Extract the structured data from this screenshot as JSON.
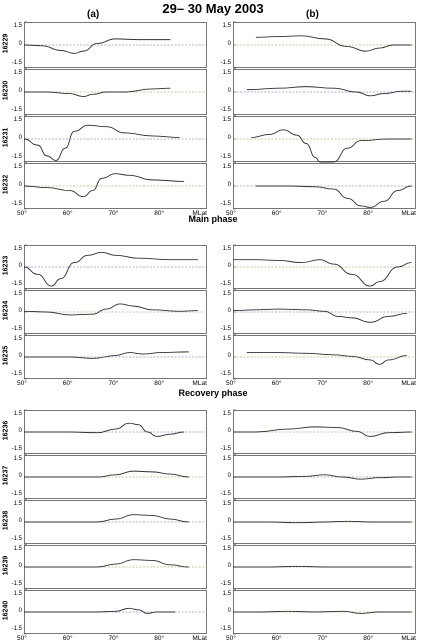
{
  "title": "29– 30  May  2003",
  "columns": [
    {
      "label": "(a)"
    },
    {
      "label": "(b)"
    }
  ],
  "phases": [
    "Main phase",
    "Recovery phase"
  ],
  "colors": {
    "curve": "#303030",
    "zero_line": "#5b63c4",
    "zero_line_alt": "#8a9a3c",
    "frame": "#555555"
  },
  "chart_data": [
    {
      "type": "line",
      "group": "main-top",
      "x_tick_labels": [
        "50°",
        "60°",
        "70°",
        "80°",
        "MLat"
      ],
      "xlim": [
        50,
        90
      ],
      "ylim": [
        -1.5,
        1.5
      ],
      "y_tick_labels": [
        "1.5",
        "0",
        "-1.5"
      ],
      "panels": [
        {
          "orbit": "16229",
          "a": [
            [
              50,
              0
            ],
            [
              54,
              -0.05
            ],
            [
              58,
              -0.35
            ],
            [
              61,
              -0.55
            ],
            [
              63,
              -0.4
            ],
            [
              66,
              0.1
            ],
            [
              70,
              0.4
            ],
            [
              75,
              0.35
            ],
            [
              82,
              0.35
            ]
          ],
          "b": [
            [
              55,
              0.5
            ],
            [
              60,
              0.55
            ],
            [
              65,
              0.6
            ],
            [
              70,
              0.4
            ],
            [
              75,
              -0.1
            ],
            [
              79,
              -0.4
            ],
            [
              82,
              -0.2
            ],
            [
              85,
              0
            ],
            [
              89,
              0
            ]
          ]
        },
        {
          "orbit": "16230",
          "a": [
            [
              50,
              0
            ],
            [
              55,
              0
            ],
            [
              60,
              -0.1
            ],
            [
              63,
              -0.3
            ],
            [
              65,
              -0.15
            ],
            [
              68,
              0
            ],
            [
              72,
              0
            ],
            [
              78,
              0.2
            ],
            [
              82,
              0.25
            ]
          ],
          "b": [
            [
              53,
              0.15
            ],
            [
              60,
              0.25
            ],
            [
              66,
              0.35
            ],
            [
              72,
              0.25
            ],
            [
              77,
              0
            ],
            [
              80,
              -0.25
            ],
            [
              83,
              -0.1
            ],
            [
              87,
              0.05
            ],
            [
              89,
              0.05
            ]
          ]
        },
        {
          "orbit": "16231",
          "a": [
            [
              50,
              0
            ],
            [
              53,
              -0.4
            ],
            [
              55,
              -1.1
            ],
            [
              57,
              -1.4
            ],
            [
              59,
              -0.6
            ],
            [
              61,
              0.5
            ],
            [
              64,
              0.9
            ],
            [
              68,
              0.8
            ],
            [
              72,
              0.4
            ],
            [
              78,
              0.2
            ],
            [
              84,
              0.1
            ]
          ],
          "b": [
            [
              54,
              0.1
            ],
            [
              58,
              0.3
            ],
            [
              61,
              0.6
            ],
            [
              64,
              0.25
            ],
            [
              66,
              -0.3
            ],
            [
              68,
              -1.2
            ],
            [
              69,
              -1.5
            ],
            [
              72,
              -1.5
            ],
            [
              75,
              -0.6
            ],
            [
              78,
              -0.1
            ],
            [
              84,
              0
            ],
            [
              89,
              0
            ]
          ]
        },
        {
          "orbit": "16232",
          "a": [
            [
              50,
              0
            ],
            [
              55,
              -0.1
            ],
            [
              60,
              -0.3
            ],
            [
              63,
              -0.7
            ],
            [
              65,
              -0.3
            ],
            [
              67,
              0.5
            ],
            [
              70,
              0.8
            ],
            [
              73,
              0.7
            ],
            [
              78,
              0.4
            ],
            [
              85,
              0.3
            ]
          ],
          "b": [
            [
              55,
              0
            ],
            [
              62,
              0
            ],
            [
              68,
              -0.05
            ],
            [
              72,
              -0.2
            ],
            [
              75,
              -0.8
            ],
            [
              78,
              -1.3
            ],
            [
              80,
              -1.4
            ],
            [
              83,
              -1.0
            ],
            [
              86,
              -0.3
            ],
            [
              89,
              0
            ]
          ]
        }
      ]
    },
    {
      "type": "line",
      "group": "main-bottom",
      "x_tick_labels": [
        "50°",
        "60°",
        "70°",
        "80°",
        "MLat"
      ],
      "xlim": [
        50,
        90
      ],
      "ylim": [
        -1.5,
        1.5
      ],
      "y_tick_labels": [
        "1.5",
        "0",
        "-1.5"
      ],
      "panels": [
        {
          "orbit": "16233",
          "a": [
            [
              50,
              0
            ],
            [
              53,
              -0.5
            ],
            [
              56,
              -1.3
            ],
            [
              58,
              -0.8
            ],
            [
              61,
              0.3
            ],
            [
              64,
              0.8
            ],
            [
              67,
              1.0
            ],
            [
              70,
              0.8
            ],
            [
              75,
              0.6
            ],
            [
              82,
              0.5
            ],
            [
              88,
              0.5
            ]
          ],
          "b": [
            [
              50,
              0.5
            ],
            [
              55,
              0.5
            ],
            [
              60,
              0.45
            ],
            [
              65,
              0.3
            ],
            [
              69,
              0.5
            ],
            [
              72,
              0.2
            ],
            [
              76,
              -0.5
            ],
            [
              80,
              -1.3
            ],
            [
              82,
              -1.0
            ],
            [
              86,
              0
            ],
            [
              89,
              0.3
            ]
          ]
        },
        {
          "orbit": "16234",
          "a": [
            [
              50,
              0.05
            ],
            [
              55,
              0
            ],
            [
              60,
              -0.2
            ],
            [
              65,
              -0.15
            ],
            [
              68,
              0.2
            ],
            [
              71,
              0.55
            ],
            [
              74,
              0.4
            ],
            [
              78,
              0.15
            ],
            [
              84,
              0.05
            ],
            [
              88,
              0.1
            ]
          ],
          "b": [
            [
              50,
              0.1
            ],
            [
              55,
              0.15
            ],
            [
              60,
              0.2
            ],
            [
              66,
              0.15
            ],
            [
              70,
              0.05
            ],
            [
              73,
              -0.3
            ],
            [
              76,
              -0.4
            ],
            [
              80,
              -0.7
            ],
            [
              84,
              -0.3
            ],
            [
              88,
              -0.1
            ]
          ]
        },
        {
          "orbit": "16235",
          "a": [
            [
              50,
              0
            ],
            [
              55,
              0
            ],
            [
              60,
              0
            ],
            [
              65,
              -0.1
            ],
            [
              70,
              0.1
            ],
            [
              73,
              0.3
            ],
            [
              76,
              0.2
            ],
            [
              80,
              0.3
            ],
            [
              86,
              0.35
            ]
          ],
          "b": [
            [
              53,
              0.3
            ],
            [
              60,
              0.3
            ],
            [
              66,
              0.25
            ],
            [
              72,
              0.15
            ],
            [
              76,
              0.05
            ],
            [
              80,
              -0.2
            ],
            [
              82,
              -0.5
            ],
            [
              84,
              -0.2
            ],
            [
              88,
              0.1
            ]
          ]
        }
      ]
    },
    {
      "type": "line",
      "group": "recovery",
      "x_tick_labels": [
        "50°",
        "60°",
        "70°",
        "80°",
        "MLat"
      ],
      "xlim": [
        50,
        90
      ],
      "ylim": [
        -1.5,
        1.5
      ],
      "y_tick_labels": [
        "1.5",
        "0",
        "-1.5"
      ],
      "panels": [
        {
          "orbit": "16236",
          "a": [
            [
              50,
              0
            ],
            [
              60,
              0
            ],
            [
              66,
              -0.05
            ],
            [
              70,
              0.2
            ],
            [
              73,
              0.6
            ],
            [
              75,
              0.5
            ],
            [
              77,
              0
            ],
            [
              79,
              -0.3
            ],
            [
              82,
              -0.15
            ],
            [
              85,
              0
            ]
          ],
          "b": [
            [
              50,
              0
            ],
            [
              55,
              0
            ],
            [
              62,
              0.2
            ],
            [
              68,
              0.35
            ],
            [
              73,
              0.3
            ],
            [
              77,
              0.05
            ],
            [
              80,
              -0.3
            ],
            [
              84,
              -0.05
            ],
            [
              89,
              0
            ]
          ]
        },
        {
          "orbit": "16237",
          "a": [
            [
              50,
              0
            ],
            [
              60,
              0
            ],
            [
              66,
              0
            ],
            [
              70,
              0.15
            ],
            [
              74,
              0.4
            ],
            [
              78,
              0.35
            ],
            [
              82,
              0.2
            ],
            [
              86,
              0
            ]
          ],
          "b": [
            [
              50,
              0
            ],
            [
              60,
              0
            ],
            [
              66,
              0.05
            ],
            [
              70,
              0.15
            ],
            [
              74,
              0
            ],
            [
              78,
              -0.15
            ],
            [
              82,
              -0.05
            ],
            [
              86,
              0
            ],
            [
              89,
              0
            ]
          ]
        },
        {
          "orbit": "16238",
          "a": [
            [
              50,
              0
            ],
            [
              60,
              0
            ],
            [
              66,
              0
            ],
            [
              70,
              0.2
            ],
            [
              74,
              0.5
            ],
            [
              78,
              0.45
            ],
            [
              82,
              0.2
            ],
            [
              86,
              0
            ]
          ],
          "b": [
            [
              50,
              0
            ],
            [
              58,
              0
            ],
            [
              64,
              -0.05
            ],
            [
              70,
              0
            ],
            [
              75,
              0.05
            ],
            [
              80,
              0
            ],
            [
              86,
              0
            ],
            [
              89,
              0
            ]
          ]
        },
        {
          "orbit": "16239",
          "a": [
            [
              50,
              0
            ],
            [
              60,
              0
            ],
            [
              66,
              0
            ],
            [
              70,
              0.2
            ],
            [
              74,
              0.5
            ],
            [
              78,
              0.45
            ],
            [
              82,
              0.15
            ],
            [
              86,
              0
            ]
          ],
          "b": [
            [
              50,
              0
            ],
            [
              58,
              0
            ],
            [
              64,
              0.05
            ],
            [
              70,
              0
            ],
            [
              76,
              0
            ],
            [
              82,
              0
            ],
            [
              89,
              0
            ]
          ]
        },
        {
          "orbit": "16240",
          "a": [
            [
              50,
              0
            ],
            [
              60,
              0
            ],
            [
              66,
              0
            ],
            [
              70,
              0.05
            ],
            [
              73,
              0.25
            ],
            [
              75,
              0.15
            ],
            [
              77,
              -0.1
            ],
            [
              79,
              0
            ],
            [
              83,
              0
            ]
          ],
          "b": [
            [
              50,
              0
            ],
            [
              56,
              0
            ],
            [
              62,
              0.05
            ],
            [
              68,
              0
            ],
            [
              74,
              0.05
            ],
            [
              78,
              -0.1
            ],
            [
              82,
              0
            ],
            [
              89,
              0
            ]
          ]
        }
      ]
    }
  ]
}
